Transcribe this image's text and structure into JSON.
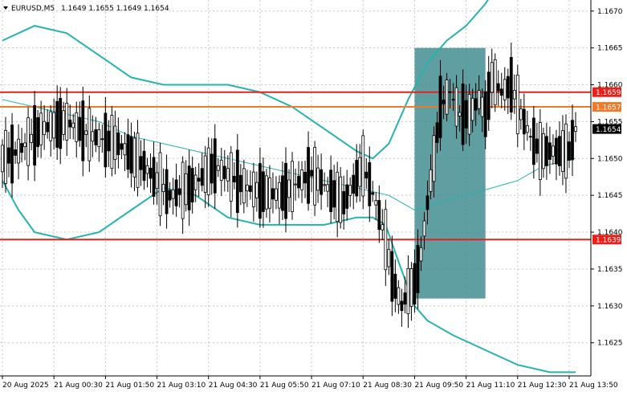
{
  "window": {
    "symbol_label": "EURUSD,M5",
    "ohlc": "1.1649 1.1655 1.1649 1.1654"
  },
  "chart_data": {
    "type": "candlestick",
    "price_axis": {
      "ylim": [
        1.16205,
        1.16715
      ],
      "ticks": [
        "1.1670",
        "1.1665",
        "1.1660",
        "1.1655",
        "1.1650",
        "1.1645",
        "1.1640",
        "1.1635",
        "1.1630",
        "1.1625"
      ],
      "tick_values": [
        1.167,
        1.1665,
        1.166,
        1.1655,
        1.165,
        1.1645,
        1.164,
        1.1635,
        1.163,
        1.1625
      ]
    },
    "time_axis": {
      "labels": [
        "20 Aug 2025",
        "21 Aug 00:30",
        "21 Aug 01:50",
        "21 Aug 03:10",
        "21 Aug 04:30",
        "21 Aug 05:50",
        "21 Aug 07:10",
        "21 Aug 08:30",
        "21 Aug 09:50",
        "21 Aug 11:10",
        "21 Aug 12:30",
        "21 Aug 13:50"
      ],
      "bar_index": [
        0,
        16,
        32,
        48,
        64,
        80,
        96,
        112,
        128,
        144,
        160,
        176
      ]
    },
    "bars_count": 179,
    "candles_sketch": [
      [
        0,
        1.1651,
        1.165,
        1.1653,
        1.1649
      ],
      [
        5,
        1.1649,
        1.1651,
        1.1652,
        1.1648
      ],
      [
        12,
        1.1653,
        1.1654,
        1.1655,
        1.1651
      ],
      [
        20,
        1.1652,
        1.1655,
        1.1656,
        1.165
      ],
      [
        28,
        1.1651,
        1.1653,
        1.1654,
        1.165
      ],
      [
        36,
        1.1651,
        1.1652,
        1.1653,
        1.165
      ],
      [
        44,
        1.1648,
        1.1649,
        1.165,
        1.1647
      ],
      [
        52,
        1.1643,
        1.1645,
        1.1648,
        1.1642
      ],
      [
        58,
        1.1647,
        1.1646,
        1.1649,
        1.1644
      ],
      [
        66,
        1.1648,
        1.1649,
        1.1651,
        1.1646
      ],
      [
        76,
        1.1647,
        1.1646,
        1.1648,
        1.1644
      ],
      [
        86,
        1.1646,
        1.1645,
        1.1647,
        1.1642
      ],
      [
        96,
        1.1647,
        1.1648,
        1.1649,
        1.1645
      ],
      [
        106,
        1.1646,
        1.1644,
        1.1648,
        1.1643
      ],
      [
        112,
        1.1648,
        1.1649,
        1.165,
        1.1646
      ],
      [
        116,
        1.1645,
        1.1644,
        1.1646,
        1.1643
      ],
      [
        119,
        1.1641,
        1.1639,
        1.1642,
        1.1636
      ],
      [
        121,
        1.1637,
        1.1634,
        1.1638,
        1.1632
      ],
      [
        124,
        1.1632,
        1.163,
        1.1634,
        1.1627
      ],
      [
        126,
        1.163,
        1.1632,
        1.1633,
        1.1626
      ],
      [
        128,
        1.163,
        1.1633,
        1.1634,
        1.1629
      ],
      [
        130,
        1.1633,
        1.1637,
        1.1638,
        1.1632
      ],
      [
        132,
        1.1637,
        1.1644,
        1.1645,
        1.1636
      ],
      [
        134,
        1.1644,
        1.165,
        1.1651,
        1.1643
      ],
      [
        136,
        1.1652,
        1.1657,
        1.1659,
        1.165
      ],
      [
        139,
        1.1657,
        1.1659,
        1.1662,
        1.1655
      ],
      [
        142,
        1.1658,
        1.1656,
        1.166,
        1.1653
      ],
      [
        145,
        1.1654,
        1.1656,
        1.1658,
        1.1651
      ],
      [
        148,
        1.1656,
        1.1658,
        1.1659,
        1.1654
      ],
      [
        150,
        1.1657,
        1.1656,
        1.1658,
        1.1654
      ],
      [
        152,
        1.1659,
        1.1661,
        1.1663,
        1.1658
      ],
      [
        155,
        1.166,
        1.1659,
        1.1662,
        1.1657
      ],
      [
        158,
        1.1659,
        1.166,
        1.1662,
        1.1657
      ],
      [
        161,
        1.1658,
        1.1656,
        1.1659,
        1.1655
      ],
      [
        164,
        1.1656,
        1.1653,
        1.1657,
        1.1652
      ],
      [
        167,
        1.1652,
        1.1651,
        1.1654,
        1.1649
      ],
      [
        170,
        1.165,
        1.1651,
        1.1652,
        1.1649
      ],
      [
        173,
        1.165,
        1.1651,
        1.1652,
        1.1648
      ],
      [
        176,
        1.1649,
        1.1651,
        1.1652,
        1.1648
      ],
      [
        178,
        1.1649,
        1.1654,
        1.1655,
        1.1649
      ]
    ],
    "bollinger": {
      "upper": [
        [
          0,
          1.1666
        ],
        [
          10,
          1.1668
        ],
        [
          20,
          1.1667
        ],
        [
          30,
          1.1664
        ],
        [
          40,
          1.1661
        ],
        [
          50,
          1.166
        ],
        [
          60,
          1.166
        ],
        [
          70,
          1.166
        ],
        [
          80,
          1.1659
        ],
        [
          90,
          1.1657
        ],
        [
          100,
          1.1654
        ],
        [
          110,
          1.1651
        ],
        [
          115,
          1.165
        ],
        [
          120,
          1.1652
        ],
        [
          126,
          1.1658
        ],
        [
          132,
          1.1663
        ],
        [
          138,
          1.1666
        ],
        [
          144,
          1.1668
        ],
        [
          150,
          1.1671
        ],
        [
          156,
          1.1675
        ],
        [
          160,
          1.1678
        ]
      ],
      "middle": [
        [
          0,
          1.1658
        ],
        [
          10,
          1.1657
        ],
        [
          20,
          1.1656
        ],
        [
          30,
          1.1655
        ],
        [
          40,
          1.1653
        ],
        [
          50,
          1.1652
        ],
        [
          60,
          1.1651
        ],
        [
          70,
          1.165
        ],
        [
          80,
          1.1649
        ],
        [
          90,
          1.1648
        ],
        [
          100,
          1.1647
        ],
        [
          110,
          1.1646
        ],
        [
          120,
          1.1645
        ],
        [
          128,
          1.1643
        ],
        [
          136,
          1.1644
        ],
        [
          144,
          1.1645
        ],
        [
          152,
          1.1646
        ],
        [
          160,
          1.1647
        ],
        [
          168,
          1.1649
        ],
        [
          178,
          1.165
        ]
      ],
      "lower": [
        [
          0,
          1.1647
        ],
        [
          5,
          1.1643
        ],
        [
          10,
          1.164
        ],
        [
          20,
          1.1639
        ],
        [
          30,
          1.164
        ],
        [
          40,
          1.1643
        ],
        [
          50,
          1.1646
        ],
        [
          60,
          1.1645
        ],
        [
          70,
          1.1642
        ],
        [
          80,
          1.1641
        ],
        [
          90,
          1.1641
        ],
        [
          100,
          1.1641
        ],
        [
          110,
          1.1642
        ],
        [
          115,
          1.1642
        ],
        [
          119,
          1.1641
        ],
        [
          123,
          1.1636
        ],
        [
          128,
          1.163
        ],
        [
          132,
          1.1628
        ],
        [
          140,
          1.1626
        ],
        [
          150,
          1.1624
        ],
        [
          160,
          1.1622
        ],
        [
          170,
          1.1621
        ],
        [
          178,
          1.1621
        ]
      ]
    },
    "horizontal_levels": [
      {
        "value": 1.1659,
        "label": "1.1659",
        "color": "#e8201c"
      },
      {
        "value": 1.1657,
        "label": "1.1657",
        "color": "#f07a2a"
      },
      {
        "value": 1.1639,
        "label": "1.1639",
        "color": "#e8201c"
      }
    ],
    "current_price": {
      "value": 1.1654,
      "label": "1.1654"
    },
    "highlight_box": {
      "x_start": 128,
      "x_end": 150,
      "y_top": 1.1665,
      "y_bottom": 1.1631,
      "color": "#3d8a8c"
    },
    "colors": {
      "candle": "#000000",
      "bollinger": "#27b3ad",
      "grid": "#c8c8c8"
    }
  }
}
